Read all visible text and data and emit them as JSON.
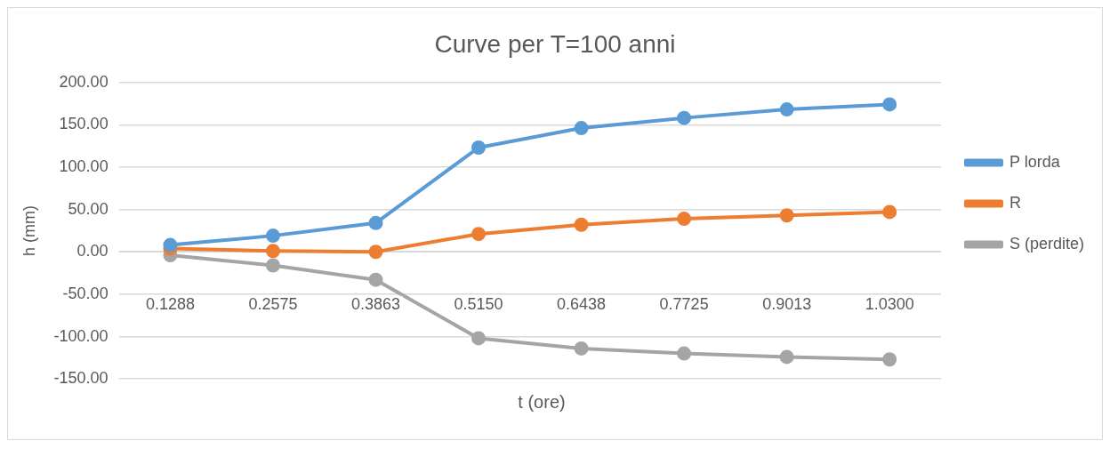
{
  "chart_data": {
    "type": "line",
    "title": "Curve per T=100 anni",
    "xlabel": "t (ore)",
    "ylabel": "h (mm)",
    "categories": [
      "0.1288",
      "0.2575",
      "0.3863",
      "0.5150",
      "0.6438",
      "0.7725",
      "0.9013",
      "1.0300"
    ],
    "series": [
      {
        "name": "P lorda",
        "color": "#5b9bd5",
        "values": [
          8,
          19,
          34,
          123,
          146,
          158,
          168,
          174
        ]
      },
      {
        "name": "R",
        "color": "#ed7d31",
        "values": [
          4,
          1,
          0,
          21,
          32,
          39,
          43,
          47
        ]
      },
      {
        "name": "S (perdite)",
        "color": "#a5a5a5",
        "values": [
          -4,
          -16,
          -33,
          -102,
          -114,
          -120,
          -124,
          -127
        ]
      }
    ],
    "ylim": [
      -150,
      200
    ],
    "yticks": [
      {
        "value": -150,
        "label": "-150.00"
      },
      {
        "value": -100,
        "label": "-100.00"
      },
      {
        "value": -50,
        "label": "-50.00"
      },
      {
        "value": 0,
        "label": "0.00"
      },
      {
        "value": 50,
        "label": "50.00"
      },
      {
        "value": 100,
        "label": "100.00"
      },
      {
        "value": 150,
        "label": "150.00"
      },
      {
        "value": 200,
        "label": "200.00"
      }
    ],
    "grid": "y",
    "legend": "right",
    "marker": "circle",
    "line_style": "solid"
  }
}
